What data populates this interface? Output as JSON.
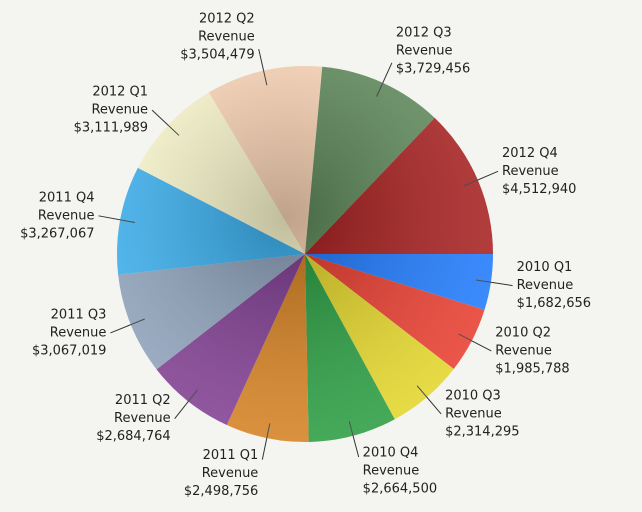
{
  "chart_data": {
    "type": "pie",
    "categories": [
      "2010 Q1",
      "2010 Q2",
      "2010 Q3",
      "2010 Q4",
      "2011 Q1",
      "2011 Q2",
      "2011 Q3",
      "2011 Q4",
      "2012 Q1",
      "2012 Q2",
      "2012 Q3",
      "2012 Q4"
    ],
    "series": [
      {
        "name": "Revenue",
        "values": [
          1682656,
          1985788,
          2314295,
          2664500,
          2498756,
          2684764,
          3067019,
          3267067,
          3111989,
          3504479,
          3729456,
          4512940
        ],
        "value_labels": [
          "$1,682,656",
          "$1,985,788",
          "$2,314,295",
          "$2,664,500",
          "$2,498,756",
          "$2,684,764",
          "$3,067,019",
          "$3,267,067",
          "$3,111,989",
          "$3,504,479",
          "$3,729,456",
          "$4,512,940"
        ]
      }
    ],
    "colors": [
      "#1a78ff",
      "#e8382a",
      "#e2d424",
      "#249a3c",
      "#d47e1c",
      "#7e3a90",
      "#8ea2bc",
      "#3ab2f2",
      "#fffcd0",
      "#ffd8b8",
      "#5e8a5a",
      "#a81c1c"
    ]
  }
}
